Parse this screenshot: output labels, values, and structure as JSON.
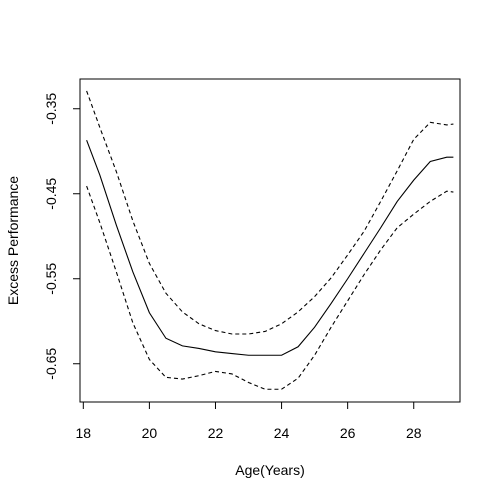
{
  "chart_data": {
    "type": "line",
    "title": "",
    "xlabel": "Age(Years)",
    "ylabel": "Excess Performance",
    "xlim": [
      17.9,
      29.4
    ],
    "ylim": [
      -0.695,
      -0.315
    ],
    "x_ticks": [
      18,
      20,
      22,
      24,
      26,
      28
    ],
    "x_tick_labels": [
      "18",
      "20",
      "22",
      "24",
      "26",
      "28"
    ],
    "y_ticks": [
      -0.35,
      -0.45,
      -0.55,
      -0.65
    ],
    "y_tick_labels": [
      "-0.35",
      "-0.45",
      "-0.55",
      "-0.65"
    ],
    "grid": false,
    "legend": "none",
    "x": [
      18.1,
      18.5,
      19.0,
      19.5,
      20.0,
      20.5,
      21.0,
      21.5,
      22.0,
      22.5,
      23.0,
      23.5,
      24.0,
      24.5,
      25.0,
      25.5,
      26.0,
      26.5,
      27.0,
      27.5,
      28.0,
      28.5,
      29.0,
      29.2
    ],
    "series": [
      {
        "style": "dashed",
        "color": "#000000",
        "values": [
          -0.329,
          -0.372,
          -0.424,
          -0.482,
          -0.532,
          -0.567,
          -0.589,
          -0.603,
          -0.611,
          -0.615,
          -0.615,
          -0.612,
          -0.603,
          -0.589,
          -0.571,
          -0.549,
          -0.522,
          -0.494,
          -0.459,
          -0.423,
          -0.386,
          -0.366,
          -0.369,
          -0.368
        ]
      },
      {
        "style": "solid",
        "color": "#000000",
        "values": [
          -0.387,
          -0.428,
          -0.487,
          -0.542,
          -0.59,
          -0.62,
          -0.629,
          -0.632,
          -0.636,
          -0.638,
          -0.64,
          -0.64,
          -0.64,
          -0.63,
          -0.607,
          -0.579,
          -0.55,
          -0.52,
          -0.49,
          -0.459,
          -0.434,
          -0.412,
          -0.407,
          -0.407
        ]
      },
      {
        "style": "dashed",
        "color": "#000000",
        "values": [
          -0.441,
          -0.484,
          -0.542,
          -0.602,
          -0.645,
          -0.666,
          -0.668,
          -0.664,
          -0.659,
          -0.662,
          -0.672,
          -0.68,
          -0.68,
          -0.667,
          -0.64,
          -0.607,
          -0.576,
          -0.545,
          -0.516,
          -0.49,
          -0.474,
          -0.459,
          -0.447,
          -0.448
        ]
      }
    ]
  }
}
